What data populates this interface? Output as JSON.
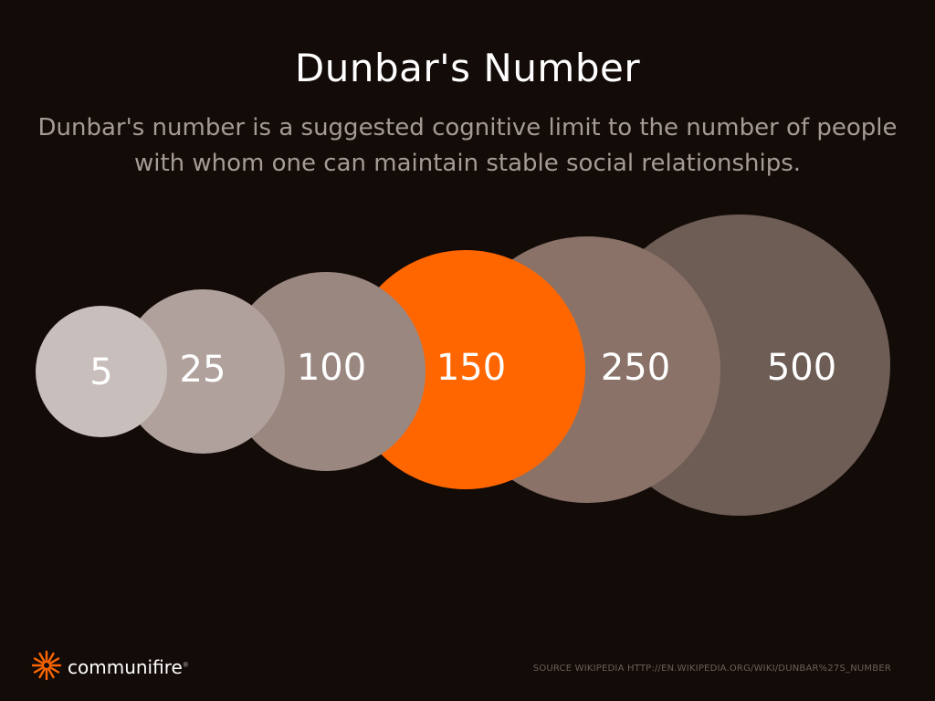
{
  "header": {
    "title": "Dunbar's Number",
    "subtitle": "Dunbar's number is a suggested cognitive limit to the number of people with whom one can maintain stable social relationships."
  },
  "circles": [
    {
      "label": "5",
      "color": "#c8bebb"
    },
    {
      "label": "25",
      "color": "#b0a19c"
    },
    {
      "label": "100",
      "color": "#9a8780"
    },
    {
      "label": "150",
      "color": "#ff6600"
    },
    {
      "label": "250",
      "color": "#8a7268"
    },
    {
      "label": "500",
      "color": "#6e5d55"
    }
  ],
  "footer": {
    "brand": "communifire",
    "brand_mark": "®",
    "source": "SOURCE WIKIPEDIA HTTP://EN.WIKIPEDIA.ORG/WIKI/DUNBAR%27S_NUMBER",
    "logo_color": "#ff6600",
    "logo_icon": "sunburst-icon"
  }
}
